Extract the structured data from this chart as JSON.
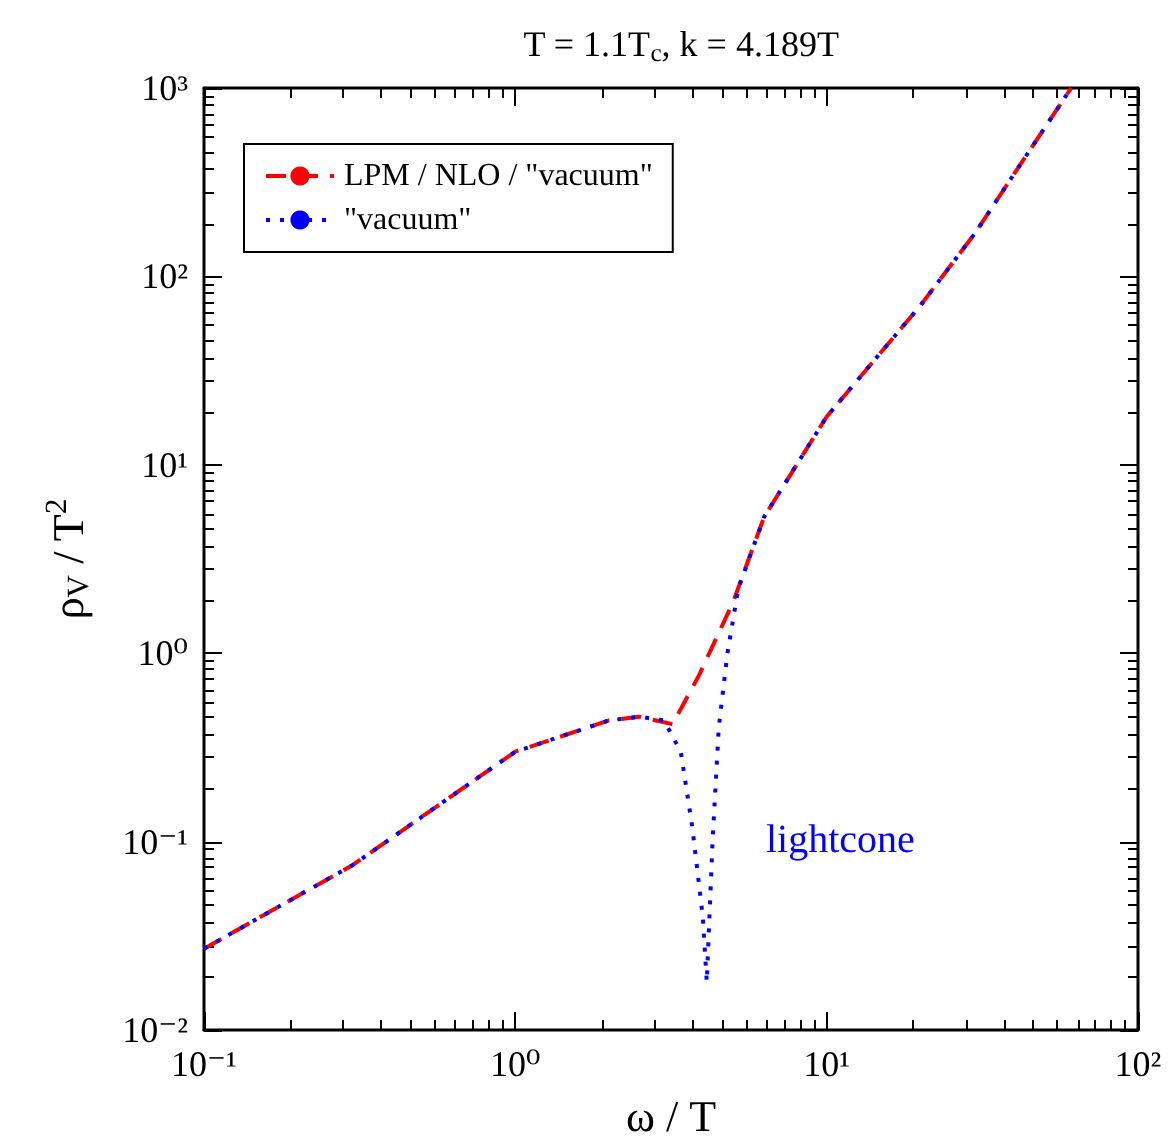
{
  "chart_data": {
    "type": "line",
    "title": "T = 1.1T$_{c}$, k = 4.189T",
    "xlabel": "ω / T",
    "ylabel": "ρ$_{V}$ / T$^{2}$",
    "log": "xy",
    "xlim": [
      0.1,
      100
    ],
    "ylim": [
      0.01,
      1000
    ],
    "xticks": [
      {
        "value": 0.1,
        "label": "10⁻¹"
      },
      {
        "value": 1,
        "label": "10⁰"
      },
      {
        "value": 10,
        "label": "10¹"
      },
      {
        "value": 100,
        "label": "10²"
      }
    ],
    "yticks": [
      {
        "value": 0.01,
        "label": "10⁻²"
      },
      {
        "value": 0.1,
        "label": "10⁻¹"
      },
      {
        "value": 1,
        "label": "10⁰"
      },
      {
        "value": 10,
        "label": "10¹"
      },
      {
        "value": 100,
        "label": "10²"
      },
      {
        "value": 1000,
        "label": "10³"
      }
    ],
    "grid": false,
    "legend": "top left",
    "marker": "none",
    "annotations": [
      "lightcone"
    ],
    "series": [
      {
        "name": "LPM / NLO / \"vacuum\"",
        "color": "#ff0000",
        "line_style": "dashed",
        "x": [
          0.1,
          0.3,
          1,
          2,
          2.5,
          3.2,
          3.9,
          5,
          6.3,
          10,
          20,
          30,
          40,
          61
        ],
        "values": [
          0.027,
          0.075,
          0.3,
          0.44,
          0.46,
          0.42,
          0.77,
          1.86,
          5.3,
          18,
          70,
          170,
          350,
          1000
        ]
      },
      {
        "name": "\"vacuum\"",
        "color": "#0000ff",
        "line_style": "dotted",
        "x": [
          0.1,
          0.3,
          1,
          2,
          2.5,
          3.0,
          3.4,
          3.7,
          4.0,
          4.12,
          4.3,
          4.5,
          4.8,
          5.2,
          6.3,
          10,
          20,
          30,
          40,
          61
        ],
        "values": [
          0.027,
          0.075,
          0.3,
          0.44,
          0.46,
          0.44,
          0.3,
          0.12,
          0.04,
          0.018,
          0.1,
          0.4,
          1.0,
          2.2,
          5.3,
          18,
          70,
          170,
          350,
          1000
        ]
      }
    ]
  }
}
